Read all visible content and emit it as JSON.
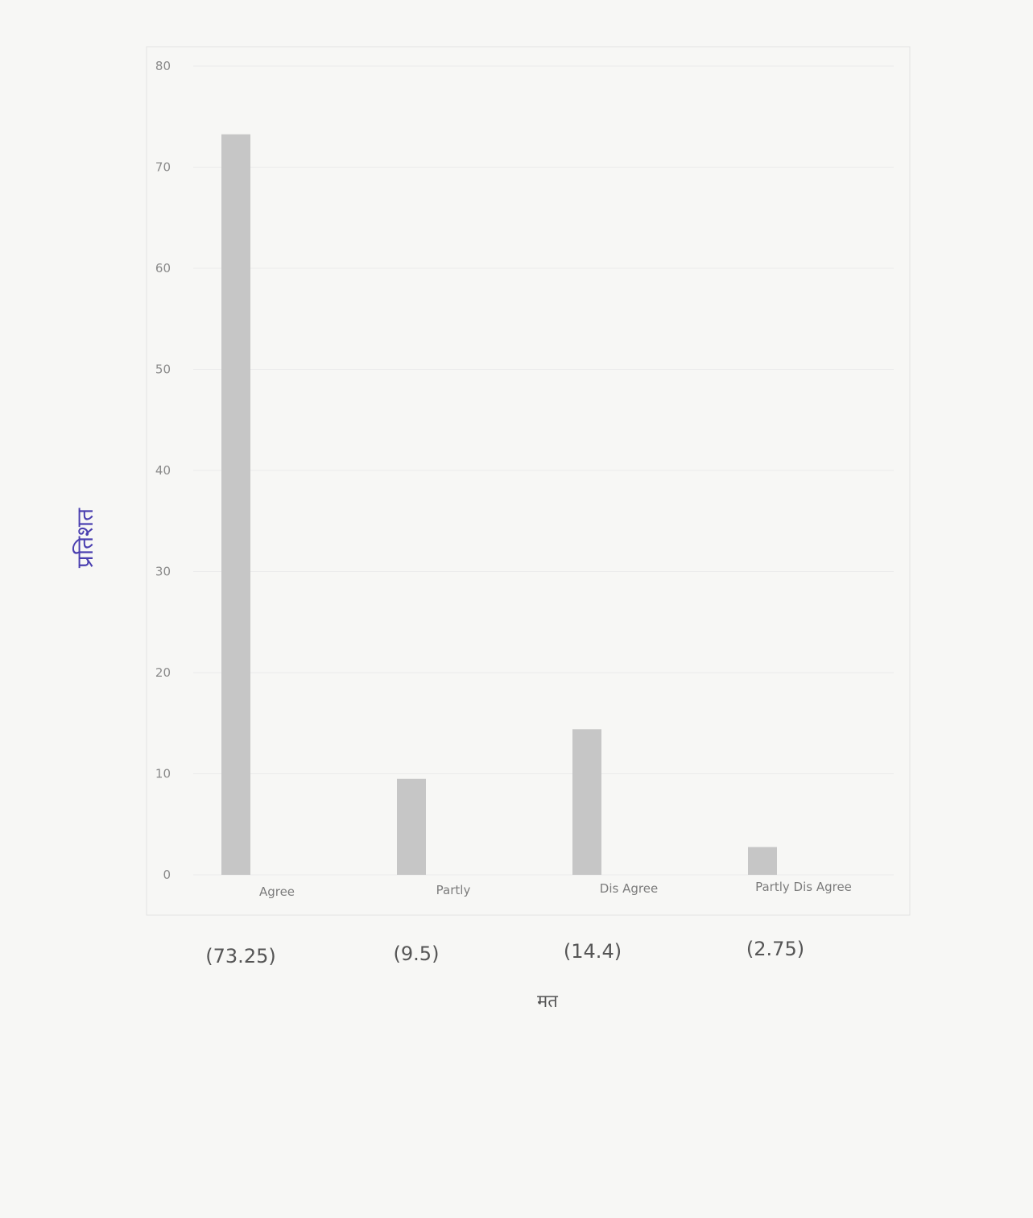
{
  "colors": {
    "bar": "#c6c6c6",
    "gridline": "#ebebeb",
    "frame": "#e3e3e3",
    "handwriting": "#4a3fb0"
  },
  "chart_data": {
    "type": "bar",
    "title": "",
    "xlabel": "मत",
    "ylabel": "प्रतिशत",
    "categories": [
      "Agree",
      "Partly",
      "Dis Agree",
      "Partly Dis Agree"
    ],
    "values": [
      73.25,
      9.5,
      14.4,
      2.75
    ],
    "value_labels": [
      "(73.25)",
      "(9.5)",
      "(14.4)",
      "(2.75)"
    ],
    "ylim": [
      0,
      80
    ],
    "yticks": [
      "0",
      "10",
      "20",
      "30",
      "40",
      "50",
      "60",
      "70",
      "80"
    ],
    "grid": true,
    "legend": "none"
  }
}
